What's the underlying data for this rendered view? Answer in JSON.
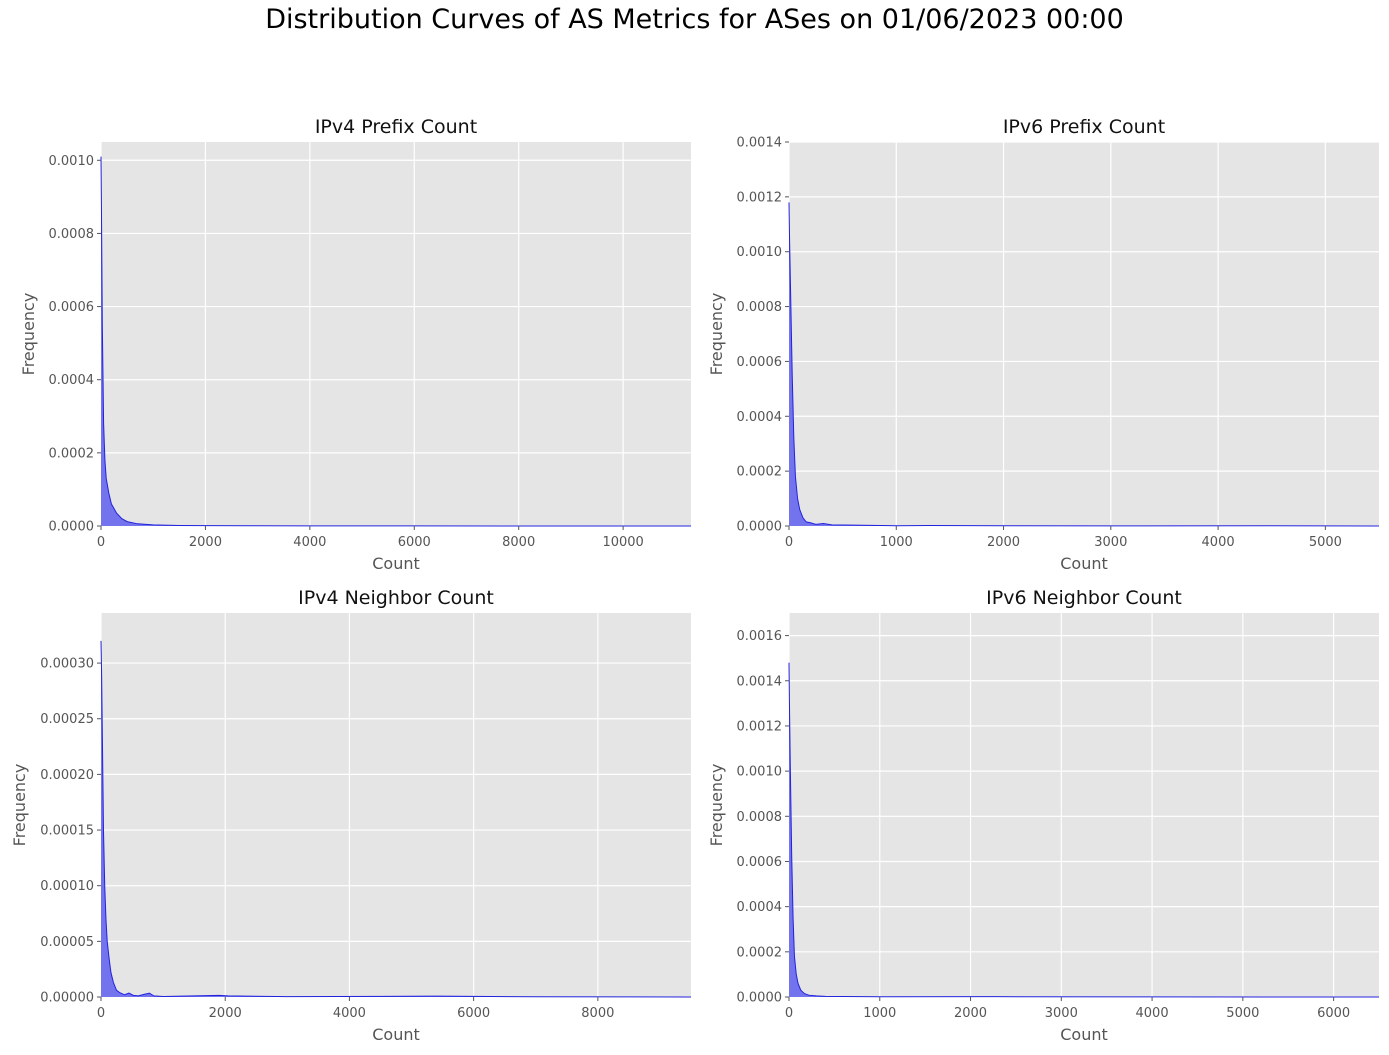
{
  "suptitle": "Distribution Curves of AS Metrics for ASes on 01/06/2023 00:00",
  "colors": {
    "plot_background": "#e5e5e5",
    "grid": "#ffffff",
    "fill": "#6666ee",
    "line": "#2222dd",
    "text": "#555555",
    "title": "#111111"
  },
  "chart_data": [
    {
      "type": "area",
      "title": "IPv4 Prefix Count",
      "xlabel": "Count",
      "ylabel": "Frequency",
      "xlim": [
        0,
        11300
      ],
      "ylim": [
        0,
        0.00105
      ],
      "xticks": [
        0,
        2000,
        4000,
        6000,
        8000,
        10000
      ],
      "yticks": [
        0,
        0.0002,
        0.0004,
        0.0006,
        0.0008,
        0.001
      ],
      "ytick_labels": [
        "0.0000",
        "0.0002",
        "0.0004",
        "0.0006",
        "0.0008",
        "0.0010"
      ],
      "grid": true,
      "x": [
        0,
        10,
        25,
        50,
        75,
        100,
        150,
        200,
        300,
        400,
        500,
        700,
        1000,
        1500,
        2000,
        3000,
        4000,
        6000,
        8000,
        10000,
        11300
      ],
      "y": [
        0.00101,
        0.00085,
        0.00055,
        0.00028,
        0.00018,
        0.00013,
        9e-05,
        6e-05,
        3.5e-05,
        2e-05,
        1.2e-05,
        6e-06,
        3e-06,
        1.5e-06,
        1e-06,
        6e-07,
        4e-07,
        2e-07,
        1e-07,
        5e-08,
        0.0
      ]
    },
    {
      "type": "area",
      "title": "IPv6 Prefix Count",
      "xlabel": "Count",
      "ylabel": "Frequency",
      "xlim": [
        0,
        5500
      ],
      "ylim": [
        0,
        0.0014
      ],
      "xticks": [
        0,
        1000,
        2000,
        3000,
        4000,
        5000
      ],
      "yticks": [
        0,
        0.0002,
        0.0004,
        0.0006,
        0.0008,
        0.001,
        0.0012,
        0.0014
      ],
      "ytick_labels": [
        "0.0000",
        "0.0002",
        "0.0004",
        "0.0006",
        "0.0008",
        "0.0010",
        "0.0012",
        "0.0014"
      ],
      "grid": true,
      "x": [
        0,
        5,
        15,
        30,
        45,
        60,
        80,
        100,
        130,
        160,
        200,
        250,
        320,
        400,
        600,
        1000,
        1300,
        2000,
        3000,
        4450,
        5500
      ],
      "y": [
        0.00118,
        0.00105,
        0.00085,
        0.00055,
        0.00032,
        0.00018,
        0.0001,
        6e-05,
        3e-05,
        1.5e-05,
        1.2e-05,
        6e-06,
        9e-06,
        4e-06,
        3e-06,
        1e-06,
        2e-06,
        8e-07,
        5e-07,
        1e-06,
        0.0
      ]
    },
    {
      "type": "area",
      "title": "IPv4 Neighbor Count",
      "xlabel": "Count",
      "ylabel": "Frequency",
      "xlim": [
        0,
        9500
      ],
      "ylim": [
        0,
        0.000345
      ],
      "xticks": [
        0,
        2000,
        4000,
        6000,
        8000
      ],
      "yticks": [
        0,
        5e-05,
        0.0001,
        0.00015,
        0.0002,
        0.00025,
        0.0003
      ],
      "ytick_labels": [
        "0.00000",
        "0.00005",
        "0.00010",
        "0.00015",
        "0.00020",
        "0.00025",
        "0.00030"
      ],
      "grid": true,
      "x": [
        0,
        10,
        25,
        40,
        60,
        80,
        100,
        130,
        160,
        200,
        250,
        300,
        380,
        450,
        520,
        600,
        700,
        780,
        850,
        1000,
        1900,
        2050,
        3000,
        5400,
        7000,
        9500
      ],
      "y": [
        0.00032,
        0.00029,
        0.00022,
        0.00015,
        0.0001,
        7e-05,
        5e-05,
        3.5e-05,
        2.2e-05,
        1.3e-05,
        6e-06,
        4e-06,
        2e-06,
        3.5e-06,
        1.5e-06,
        1e-06,
        2.5e-06,
        3.5e-06,
        1e-06,
        5e-07,
        1.5e-06,
        1e-06,
        3e-07,
        8e-07,
        2e-07,
        0.0
      ]
    },
    {
      "type": "area",
      "title": "IPv6 Neighbor Count",
      "xlabel": "Count",
      "ylabel": "Frequency",
      "xlim": [
        0,
        6500
      ],
      "ylim": [
        0,
        0.0017
      ],
      "xticks": [
        0,
        1000,
        2000,
        3000,
        4000,
        5000,
        6000
      ],
      "yticks": [
        0,
        0.0002,
        0.0004,
        0.0006,
        0.0008,
        0.001,
        0.0012,
        0.0014,
        0.0016
      ],
      "ytick_labels": [
        "0.0000",
        "0.0002",
        "0.0004",
        "0.0006",
        "0.0008",
        "0.0010",
        "0.0012",
        "0.0014",
        "0.0016"
      ],
      "grid": true,
      "x": [
        0,
        5,
        15,
        30,
        45,
        60,
        80,
        100,
        130,
        170,
        220,
        300,
        400,
        600,
        1000,
        2250,
        4000,
        6500
      ],
      "y": [
        0.00148,
        0.0013,
        0.001,
        0.00062,
        0.00035,
        0.00018,
        0.0001,
        6e-05,
        3e-05,
        1.5e-05,
        8e-06,
        5e-06,
        3e-06,
        2e-06,
        1e-06,
        1.5e-06,
        3e-07,
        0.0
      ]
    }
  ]
}
